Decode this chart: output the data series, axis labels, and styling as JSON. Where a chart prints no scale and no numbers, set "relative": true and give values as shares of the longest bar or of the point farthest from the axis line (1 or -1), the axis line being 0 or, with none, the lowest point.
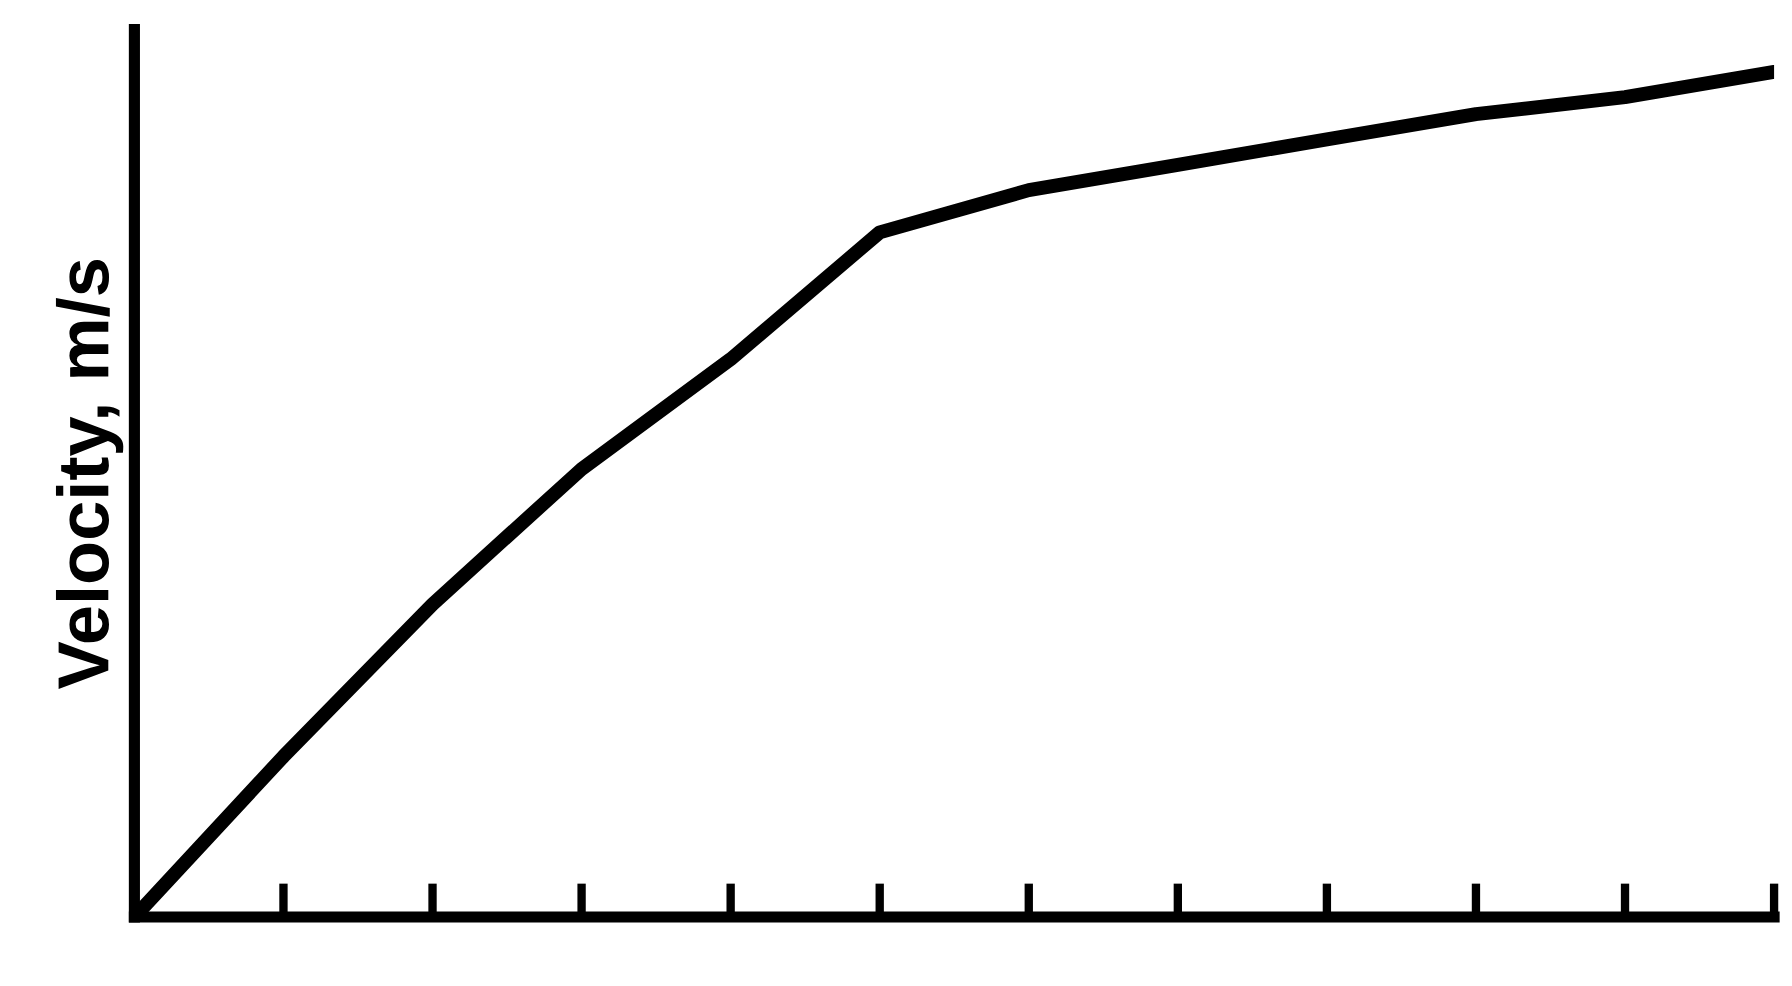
{
  "chart_data": {
    "type": "line",
    "ylabel": "Velocity, m/s",
    "relative": true,
    "categories": [
      null,
      null,
      null,
      null,
      null,
      null,
      null,
      null,
      null,
      null,
      null,
      null
    ],
    "series": [
      {
        "color": "#000000",
        "values": [
          0,
          0.19,
          0.37,
          0.53,
          0.66,
          0.81,
          0.86,
          0.89,
          0.92,
          0.95,
          0.97,
          1
        ]
      }
    ],
    "grid": false,
    "legend": false,
    "marker": "none",
    "line_style": "solid"
  }
}
